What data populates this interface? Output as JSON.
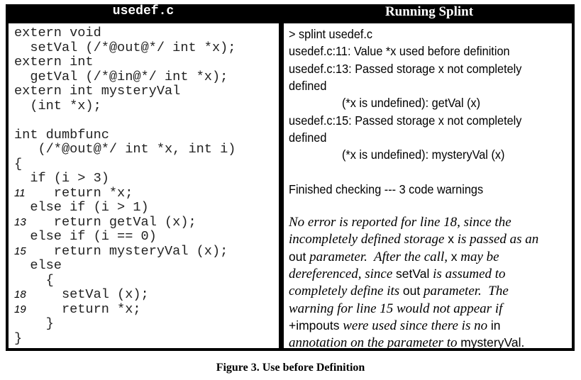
{
  "left_title": "usedef.c",
  "right_title": "Running Splint",
  "code": [
    {
      "n": "",
      "t": "extern void"
    },
    {
      "n": "",
      "t": "  setVal (/*@out@*/ int *x);"
    },
    {
      "n": "",
      "t": "extern int"
    },
    {
      "n": "",
      "t": "  getVal (/*@in@*/ int *x);"
    },
    {
      "n": "",
      "t": "extern int mysteryVal"
    },
    {
      "n": "",
      "t": "  (int *x);"
    },
    {
      "n": "",
      "t": ""
    },
    {
      "n": "",
      "t": "int dumbfunc"
    },
    {
      "n": "",
      "t": "   (/*@out@*/ int *x, int i)"
    },
    {
      "n": "",
      "t": "{"
    },
    {
      "n": "",
      "t": "  if (i > 3)"
    },
    {
      "n": "11",
      "t": "     return *x;"
    },
    {
      "n": "",
      "t": "  else if (i > 1)"
    },
    {
      "n": "13",
      "t": "     return getVal (x);"
    },
    {
      "n": "",
      "t": "  else if (i == 0)"
    },
    {
      "n": "15",
      "t": "     return mysteryVal (x);"
    },
    {
      "n": "",
      "t": "  else"
    },
    {
      "n": "",
      "t": "    {"
    },
    {
      "n": "18",
      "t": "      setVal (x);"
    },
    {
      "n": "19",
      "t": "      return *x;"
    },
    {
      "n": "",
      "t": "    }"
    },
    {
      "n": "",
      "t": "}"
    }
  ],
  "output": [
    {
      "ind": false,
      "t": "> splint usedef.c"
    },
    {
      "ind": false,
      "t": "usedef.c:11: Value *x used before definition"
    },
    {
      "ind": false,
      "t": "usedef.c:13: Passed storage x not completely"
    },
    {
      "ind": false,
      "t": "defined"
    },
    {
      "ind": true,
      "t": "(*x is undefined): getVal (x)"
    },
    {
      "ind": false,
      "t": "usedef.c:15: Passed storage x not completely"
    },
    {
      "ind": false,
      "t": "defined"
    },
    {
      "ind": true,
      "t": "(*x is undefined): mysteryVal (x)"
    },
    {
      "ind": false,
      "t": ""
    },
    {
      "ind": false,
      "t": "Finished checking --- 3 code warnings"
    }
  ],
  "note": [
    [
      [
        "i",
        "No error is reported for line 18, since the"
      ]
    ],
    [
      [
        "i",
        "incompletely defined storage "
      ],
      [
        "s",
        "x"
      ],
      [
        "i",
        " is passed as an"
      ]
    ],
    [
      [
        "s",
        "out"
      ],
      [
        "i",
        " parameter.  After the call, "
      ],
      [
        "s",
        "x"
      ],
      [
        "i",
        " may be"
      ]
    ],
    [
      [
        "i",
        "dereferenced, since "
      ],
      [
        "s",
        "setVal"
      ],
      [
        "i",
        " is assumed to"
      ]
    ],
    [
      [
        "i",
        "completely define its "
      ],
      [
        "s",
        "out"
      ],
      [
        "i",
        " parameter.  The"
      ]
    ],
    [
      [
        "i",
        "warning for line 15 would not appear if"
      ]
    ],
    [
      [
        "s",
        "+impouts"
      ],
      [
        "i",
        " were used since there is no "
      ],
      [
        "s",
        "in"
      ]
    ],
    [
      [
        "i",
        "annotation on the parameter to "
      ],
      [
        "s",
        "mysteryVal"
      ],
      [
        "s",
        "."
      ]
    ]
  ],
  "caption": "Figure 3.  Use before Definition"
}
